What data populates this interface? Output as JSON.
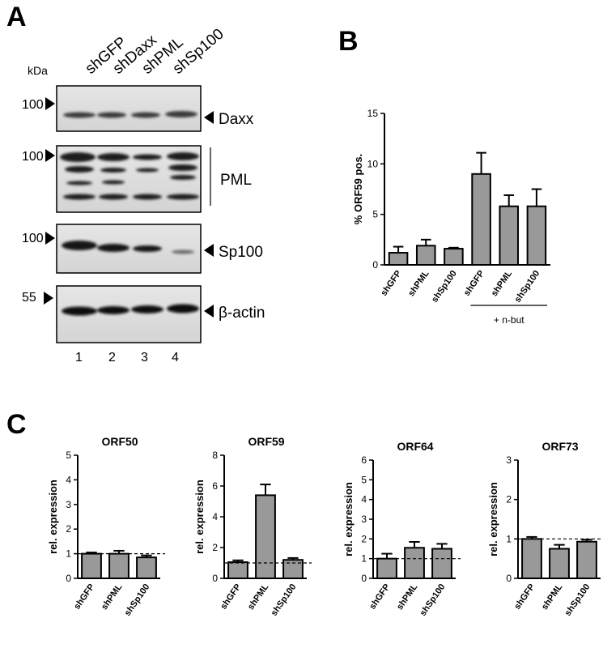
{
  "panels": {
    "A": "A",
    "B": "B",
    "C": "C"
  },
  "western_blot": {
    "kda_label": "kDa",
    "lanes": [
      "shGFP",
      "shDaxx",
      "shPML",
      "shSp100"
    ],
    "lane_numbers": [
      "1",
      "2",
      "3",
      "4"
    ],
    "blots": [
      {
        "marker": "100",
        "label": "Daxx"
      },
      {
        "marker": "100",
        "label": "PML"
      },
      {
        "marker": "100",
        "label": "Sp100"
      },
      {
        "marker": "55",
        "label": "β-actin"
      }
    ]
  },
  "chart_data": [
    {
      "panel": "B",
      "type": "bar",
      "title": "",
      "ylabel": "% ORF59 pos.",
      "xlabel": "",
      "ylim": [
        0,
        15
      ],
      "yticks": [
        0,
        5,
        10,
        15
      ],
      "categories": [
        "shGFP",
        "shPML",
        "shSp100",
        "shGFP",
        "shPML",
        "shSp100"
      ],
      "values": [
        1.2,
        1.9,
        1.6,
        9.0,
        5.8,
        5.8
      ],
      "errors": [
        0.6,
        0.6,
        0.1,
        2.1,
        1.1,
        1.7
      ],
      "bracket": {
        "label": "+ n-but",
        "from": 3,
        "to": 5
      },
      "color": "#999999"
    },
    {
      "panel": "C",
      "type": "bar",
      "title": "ORF50",
      "ylabel": "rel. expression",
      "ylim": [
        0,
        5
      ],
      "yticks": [
        0,
        1,
        2,
        3,
        4,
        5
      ],
      "categories": [
        "shGFP",
        "shPML",
        "shSp100"
      ],
      "values": [
        1.0,
        1.0,
        0.85
      ],
      "errors": [
        0.05,
        0.12,
        0.08
      ],
      "reference_line": 1,
      "color": "#999999"
    },
    {
      "panel": "C",
      "type": "bar",
      "title": "ORF59",
      "ylabel": "rel. expression",
      "ylim": [
        0,
        8
      ],
      "yticks": [
        0,
        2,
        4,
        6,
        8
      ],
      "categories": [
        "shGFP",
        "shPML",
        "shSp100"
      ],
      "values": [
        1.05,
        5.4,
        1.2
      ],
      "errors": [
        0.12,
        0.7,
        0.12
      ],
      "reference_line": 1,
      "color": "#999999"
    },
    {
      "panel": "C",
      "type": "bar",
      "title": "ORF64",
      "ylabel": "rel. expression",
      "ylim": [
        0,
        6
      ],
      "yticks": [
        0,
        1,
        2,
        3,
        4,
        5,
        6
      ],
      "categories": [
        "shGFP",
        "shPML",
        "shSp100"
      ],
      "values": [
        1.0,
        1.55,
        1.5
      ],
      "errors": [
        0.25,
        0.3,
        0.25
      ],
      "reference_line": 1,
      "color": "#999999"
    },
    {
      "panel": "C",
      "type": "bar",
      "title": "ORF73",
      "ylabel": "rel. expression",
      "ylim": [
        0,
        3
      ],
      "yticks": [
        0,
        1,
        2,
        3
      ],
      "categories": [
        "shGFP",
        "shPML",
        "shSp100"
      ],
      "values": [
        1.0,
        0.75,
        0.93
      ],
      "errors": [
        0.05,
        0.1,
        0.05
      ],
      "reference_line": 1,
      "color": "#999999"
    }
  ]
}
